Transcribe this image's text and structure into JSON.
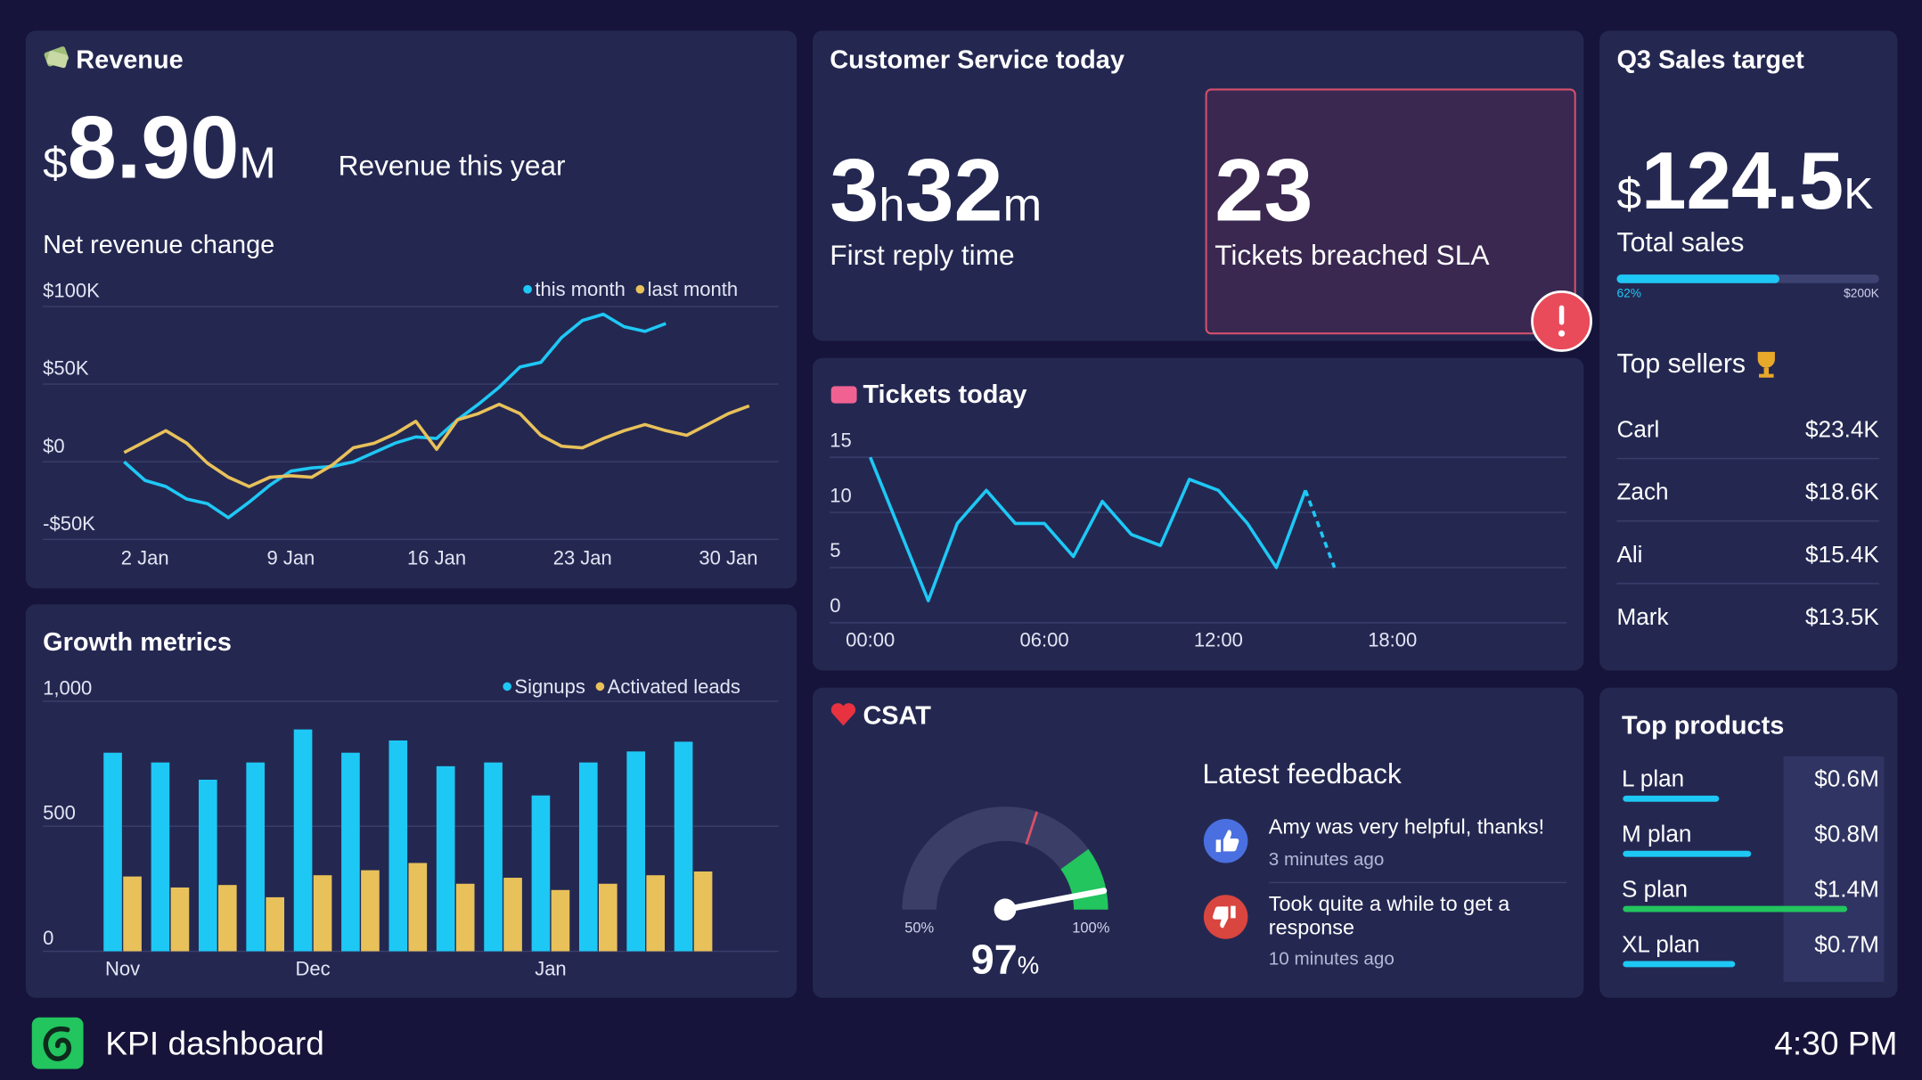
{
  "chart_data": [
    {
      "type": "line",
      "title": "Net revenue change",
      "x": [
        1,
        2,
        3,
        4,
        5,
        6,
        7,
        8,
        9,
        10,
        11,
        12,
        13,
        14,
        15,
        16,
        17,
        18,
        19,
        20,
        21,
        22,
        23,
        24,
        25,
        26,
        27,
        28,
        29,
        30,
        31
      ],
      "series": [
        {
          "name": "this month",
          "color": "#1ec8f5",
          "values": [
            0,
            -12000,
            -16000,
            -24000,
            -27000,
            -36000,
            -26000,
            -15000,
            -6000,
            -4000,
            -3000,
            0,
            6000,
            12000,
            16000,
            15000,
            27000,
            37000,
            48000,
            61000,
            64000,
            80000,
            91000,
            95000,
            87000,
            84000,
            89000,
            null,
            null,
            null,
            null
          ]
        },
        {
          "name": "last month",
          "color": "#e8c15a",
          "values": [
            6000,
            13000,
            20000,
            12000,
            -1000,
            -10000,
            -16000,
            -10000,
            -9000,
            -10000,
            -2000,
            9000,
            12000,
            18000,
            26000,
            8000,
            27000,
            31000,
            37000,
            31000,
            17000,
            10000,
            9000,
            15000,
            20000,
            24000,
            20000,
            17000,
            24000,
            31000,
            36000
          ]
        }
      ],
      "xlim": [
        -2.9,
        32.4
      ],
      "xticks": [
        {
          "value": 2,
          "label": "2 Jan"
        },
        {
          "value": 9,
          "label": "9 Jan"
        },
        {
          "value": 16,
          "label": "16 Jan"
        },
        {
          "value": 23,
          "label": "23 Jan"
        },
        {
          "value": 30,
          "label": "30 Jan"
        }
      ],
      "ylim": [
        -50000,
        100000
      ],
      "yticks": [
        {
          "value": -50000,
          "label": "-$50K"
        },
        {
          "value": 0,
          "label": "$0"
        },
        {
          "value": 50000,
          "label": "$50K"
        },
        {
          "value": 100000,
          "label": "$100K"
        }
      ],
      "grid": true,
      "legend": "top-right"
    },
    {
      "type": "bar",
      "title": "Growth metrics",
      "categories": [
        "Nov",
        null,
        null,
        null,
        "Dec",
        null,
        null,
        null,
        null,
        "Jan",
        null,
        null,
        null
      ],
      "series": [
        {
          "name": "Signups",
          "color": "#1ec8f5",
          "values": [
            794,
            755,
            686,
            755,
            887,
            794,
            843,
            740,
            755,
            623,
            755,
            799,
            838
          ]
        },
        {
          "name": "Activated leads",
          "color": "#e8c15a",
          "values": [
            299,
            255,
            265,
            216,
            304,
            324,
            353,
            270,
            294,
            245,
            270,
            304,
            319
          ]
        }
      ],
      "ylim": [
        0,
        1000
      ],
      "yticks": [
        0,
        500,
        {
          "value": 1000,
          "label": "1,000"
        }
      ],
      "grid": true,
      "legend": "top-right"
    },
    {
      "type": "line",
      "title": "Tickets today",
      "x": [
        0,
        2,
        3,
        4,
        5,
        6,
        7,
        8,
        9,
        10,
        11,
        12,
        13,
        14,
        15,
        16
      ],
      "series": [
        {
          "color": "#1ec8f5",
          "values": [
            15,
            2,
            9,
            12,
            9,
            9,
            6,
            11,
            8,
            7,
            13,
            12,
            9,
            5,
            12,
            5
          ]
        }
      ],
      "xlim": [
        0,
        24
      ],
      "xticks": [
        {
          "value": 0,
          "label": "00:00"
        },
        {
          "value": 6,
          "label": "06:00"
        },
        {
          "value": 12,
          "label": "12:00"
        },
        {
          "value": 18,
          "label": "18:00"
        }
      ],
      "ylim": [
        0,
        15
      ],
      "yticks": [
        0,
        5,
        10,
        15
      ],
      "grid": true,
      "last_segment_dashed": true
    },
    {
      "type": "gauge",
      "title": "CSAT",
      "value": 97,
      "value_label": "97%",
      "lim": [
        50,
        100
      ],
      "ticks": [
        {
          "value": 50,
          "label": "50%"
        },
        {
          "value": 100,
          "label": "100%"
        }
      ],
      "target": 80,
      "target_color": "#e0506a",
      "bands": [
        {
          "from": 90,
          "to": 100,
          "color": "#22c55e"
        }
      ],
      "track_color": "#3b3f68"
    }
  ],
  "revenue": {
    "title": "Revenue",
    "amount": "$8.90M",
    "caption": "Revenue this year"
  },
  "customer_service": {
    "title": "Customer Service today",
    "first_reply": {
      "value": "3h32m",
      "label": "First reply time"
    },
    "sla": {
      "value": 23,
      "label": "Tickets breached SLA"
    }
  },
  "sales_target": {
    "title": "Q3 Sales target",
    "amount": "$124.5K",
    "caption": "Total sales",
    "progress": 62,
    "progress_label": "62%",
    "target": "$200K"
  },
  "top_sellers": {
    "title": "Top sellers",
    "rows": [
      [
        "Carl",
        "$23.4K"
      ],
      [
        "Zach",
        "$18.6K"
      ],
      [
        "Ali",
        "$15.4K"
      ],
      [
        "Mark",
        "$13.5K"
      ]
    ]
  },
  "feedback": {
    "title": "Latest feedback",
    "items": [
      {
        "text": "Amy was very helpful, thanks!",
        "time": "3 minutes ago",
        "sentiment": "positive"
      },
      {
        "text": "Took quite a while to get a response",
        "time": "10 minutes ago",
        "sentiment": "negative"
      }
    ]
  },
  "top_products": {
    "title": "Top products",
    "items": [
      {
        "name": "L plan",
        "value": 600000,
        "value_label": "$0.6M",
        "color": "#1ec8f5"
      },
      {
        "name": "M plan",
        "value": 800000,
        "value_label": "$0.8M",
        "color": "#1ec8f5"
      },
      {
        "name": "S plan",
        "value": 1400000,
        "value_label": "$1.4M",
        "color": "#22c55e"
      },
      {
        "name": "XL plan",
        "value": 700000,
        "value_label": "$0.7M",
        "color": "#1ec8f5"
      }
    ]
  },
  "footer": {
    "title": "KPI dashboard",
    "time": "4:30 PM"
  }
}
